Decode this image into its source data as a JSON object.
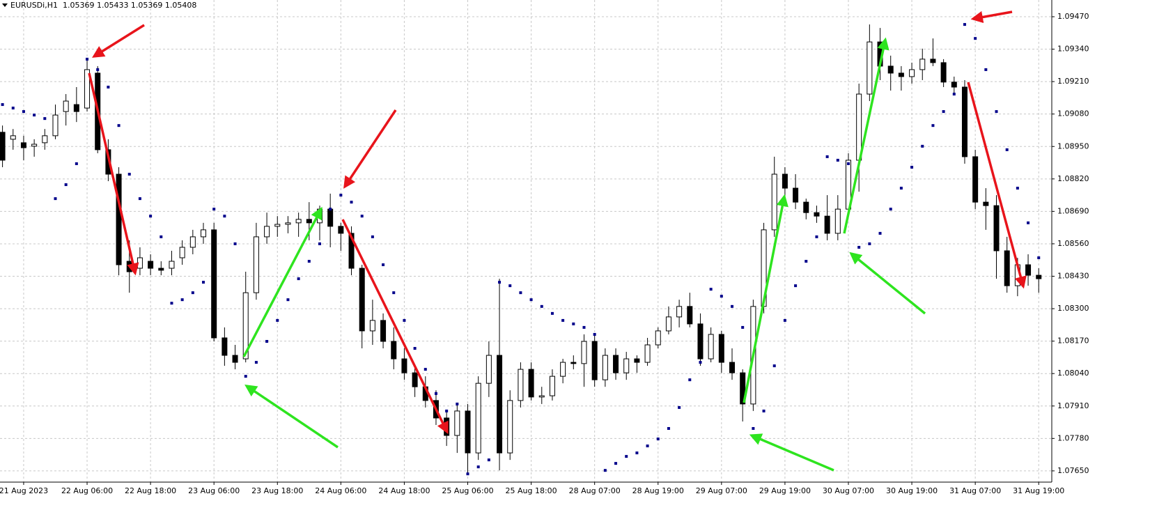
{
  "chart_data": {
    "type": "candlestick",
    "title": "EURUSDi,H1  1.05369 1.05433 1.05369 1.05408",
    "ylim": [
      1.07605,
      1.09537
    ],
    "yticks": [
      {
        "value": 1.0765,
        "label": "1.07650"
      },
      {
        "value": 1.0778,
        "label": "1.07780"
      },
      {
        "value": 1.0791,
        "label": "1.07910"
      },
      {
        "value": 1.0804,
        "label": "1.08040"
      },
      {
        "value": 1.0817,
        "label": "1.08170"
      },
      {
        "value": 1.083,
        "label": "1.08300"
      },
      {
        "value": 1.0843,
        "label": "1.08430"
      },
      {
        "value": 1.0856,
        "label": "1.08560"
      },
      {
        "value": 1.0869,
        "label": "1.08690"
      },
      {
        "value": 1.0882,
        "label": "1.08820"
      },
      {
        "value": 1.0895,
        "label": "1.08950"
      },
      {
        "value": 1.0908,
        "label": "1.09080"
      },
      {
        "value": 1.0921,
        "label": "1.09210"
      },
      {
        "value": 1.0934,
        "label": "1.09340"
      },
      {
        "value": 1.0947,
        "label": "1.09470"
      }
    ],
    "xticks": [
      {
        "value": 2,
        "label": "21 Aug 2023"
      },
      {
        "value": 8,
        "label": "22 Aug 06:00"
      },
      {
        "value": 14,
        "label": "22 Aug 18:00"
      },
      {
        "value": 20,
        "label": "23 Aug 06:00"
      },
      {
        "value": 26,
        "label": "23 Aug 18:00"
      },
      {
        "value": 32,
        "label": "24 Aug 06:00"
      },
      {
        "value": 38,
        "label": "24 Aug 18:00"
      },
      {
        "value": 44,
        "label": "25 Aug 06:00"
      },
      {
        "value": 50,
        "label": "25 Aug 18:00"
      },
      {
        "value": 56,
        "label": "28 Aug 07:00"
      },
      {
        "value": 62,
        "label": "28 Aug 19:00"
      },
      {
        "value": 68,
        "label": "29 Aug 07:00"
      },
      {
        "value": 74,
        "label": "29 Aug 19:00"
      },
      {
        "value": 80,
        "label": "30 Aug 07:00"
      },
      {
        "value": 86,
        "label": "30 Aug 19:00"
      },
      {
        "value": 92,
        "label": "31 Aug 07:00"
      },
      {
        "value": 98,
        "label": "31 Aug 19:00"
      }
    ],
    "grid": true,
    "bull_color": "#ffffff",
    "bear_color": "#000000",
    "open": [
      1.09007,
      1.08979,
      1.08965,
      1.08951,
      1.08965,
      1.08993,
      1.0909,
      1.09118,
      1.09104,
      1.09244,
      1.08937,
      1.08839,
      1.0849,
      1.08462,
      1.0849,
      1.08462,
      1.08462,
      1.08504,
      1.08546,
      1.08588,
      1.08616,
      1.08183,
      1.08113,
      1.08099,
      1.08364,
      1.08588,
      1.0863,
      1.08638,
      1.08644,
      1.08658,
      1.08644,
      1.08699,
      1.0863,
      1.08602,
      1.08462,
      1.08211,
      1.08253,
      1.08169,
      1.08099,
      1.08043,
      1.07987,
      1.07932,
      1.07862,
      1.07792,
      1.0789,
      1.07722,
      1.08001,
      1.08113,
      1.07722,
      1.07932,
      1.08057,
      1.07946,
      1.07951,
      1.08029,
      1.08085,
      1.0808,
      1.08169,
      1.08015,
      1.08113,
      1.08043,
      1.08099,
      1.08085,
      1.08155,
      1.08211,
      1.08267,
      1.08309,
      1.08239,
      1.08099,
      1.08197,
      1.08085,
      1.08043,
      1.07918,
      1.08309,
      1.08616,
      1.08839,
      1.08783,
      1.08727,
      1.08685,
      1.08671,
      1.08602,
      1.08699,
      1.08895,
      1.0916,
      1.09369,
      1.09272,
      1.09244,
      1.0923,
      1.09258,
      1.093,
      1.09286,
      1.09208,
      1.09188,
      1.08909,
      1.08727,
      1.08713,
      1.08532,
      1.08392,
      1.08476,
      1.08434
    ],
    "high": [
      1.09034,
      1.0902,
      1.08993,
      1.08979,
      1.0902,
      1.09118,
      1.0916,
      1.09188,
      1.093,
      1.09272,
      1.08979,
      1.08867,
      1.08574,
      1.08546,
      1.08518,
      1.0849,
      1.08532,
      1.08574,
      1.08616,
      1.08644,
      1.08644,
      1.08225,
      1.08155,
      1.08448,
      1.08644,
      1.08685,
      1.08671,
      1.08671,
      1.08685,
      1.08727,
      1.08713,
      1.08761,
      1.08644,
      1.0863,
      1.08476,
      1.08336,
      1.08281,
      1.08225,
      1.08141,
      1.08071,
      1.08029,
      1.07973,
      1.0789,
      1.07918,
      1.07918,
      1.08029,
      1.08169,
      1.0842,
      1.07973,
      1.08085,
      1.08085,
      1.07987,
      1.08057,
      1.08099,
      1.08113,
      1.08197,
      1.08197,
      1.08141,
      1.08141,
      1.08127,
      1.08113,
      1.08183,
      1.08225,
      1.08309,
      1.08336,
      1.08364,
      1.08281,
      1.08225,
      1.08211,
      1.08141,
      1.08057,
      1.08336,
      1.08644,
      1.08909,
      1.08867,
      1.08839,
      1.08741,
      1.08713,
      1.08755,
      1.08755,
      1.08923,
      1.09202,
      1.09439,
      1.09425,
      1.09314,
      1.09272,
      1.09286,
      1.09342,
      1.09383,
      1.093,
      1.0923,
      1.09216,
      1.08937,
      1.08783,
      1.08755,
      1.08588,
      1.08504,
      1.08518,
      1.08462
    ],
    "low": [
      1.08867,
      1.08937,
      1.08895,
      1.08909,
      1.08937,
      1.08979,
      1.09034,
      1.09048,
      1.0909,
      1.08923,
      1.08811,
      1.08434,
      1.08364,
      1.08434,
      1.08434,
      1.08434,
      1.08434,
      1.08476,
      1.08518,
      1.0856,
      1.08169,
      1.08071,
      1.08057,
      1.08085,
      1.08336,
      1.0856,
      1.08588,
      1.08602,
      1.08588,
      1.08574,
      1.08574,
      1.08546,
      1.08532,
      1.08434,
      1.08141,
      1.08155,
      1.08141,
      1.08057,
      1.08015,
      1.07946,
      1.07904,
      1.07834,
      1.0775,
      1.07722,
      1.07638,
      1.07694,
      1.07946,
      1.07652,
      1.07694,
      1.07904,
      1.07932,
      1.07918,
      1.07932,
      1.08001,
      1.08057,
      1.07987,
      1.07987,
      1.07987,
      1.08015,
      1.08015,
      1.08043,
      1.08071,
      1.08141,
      1.08197,
      1.08225,
      1.08225,
      1.08071,
      1.08085,
      1.08043,
      1.08015,
      1.07848,
      1.0789,
      1.08281,
      1.08588,
      1.08727,
      1.08699,
      1.08658,
      1.08644,
      1.08574,
      1.08574,
      1.08671,
      1.08769,
      1.09132,
      1.09216,
      1.09174,
      1.09174,
      1.09202,
      1.09216,
      1.09272,
      1.09188,
      1.0916,
      1.08881,
      1.08699,
      1.08616,
      1.0842,
      1.08364,
      1.0835,
      1.08392,
      1.08364
    ],
    "close": [
      1.08895,
      1.08993,
      1.08945,
      1.08959,
      1.08993,
      1.09076,
      1.09132,
      1.0909,
      1.09258,
      1.08937,
      1.08839,
      1.08476,
      1.08448,
      1.08504,
      1.08462,
      1.08454,
      1.0849,
      1.08546,
      1.08588,
      1.08616,
      1.08183,
      1.08113,
      1.08085,
      1.08364,
      1.08588,
      1.0863,
      1.08638,
      1.08644,
      1.08658,
      1.08644,
      1.08699,
      1.0863,
      1.08602,
      1.08462,
      1.08211,
      1.08253,
      1.08169,
      1.08099,
      1.08043,
      1.07987,
      1.07932,
      1.07862,
      1.07792,
      1.0789,
      1.07722,
      1.08001,
      1.08113,
      1.07722,
      1.07932,
      1.08057,
      1.07946,
      1.07951,
      1.08029,
      1.08085,
      1.0808,
      1.08169,
      1.08015,
      1.08113,
      1.08043,
      1.08099,
      1.08085,
      1.08155,
      1.08211,
      1.08267,
      1.08309,
      1.08239,
      1.08099,
      1.08197,
      1.08085,
      1.08043,
      1.07918,
      1.08309,
      1.08616,
      1.08839,
      1.08783,
      1.08727,
      1.08685,
      1.08671,
      1.08602,
      1.08699,
      1.08895,
      1.0916,
      1.09369,
      1.09272,
      1.09244,
      1.0923,
      1.09258,
      1.093,
      1.09286,
      1.09208,
      1.09188,
      1.08909,
      1.08727,
      1.08713,
      1.08532,
      1.08392,
      1.08476,
      1.08434,
      1.0842
    ],
    "sar": {
      "color": "#00008b",
      "values": [
        1.09118,
        1.09104,
        1.0909,
        1.09076,
        1.09062,
        1.08741,
        1.08797,
        1.08881,
        1.093,
        1.09258,
        1.09188,
        1.09034,
        1.08839,
        1.08741,
        1.08671,
        1.08588,
        1.08322,
        1.08336,
        1.08364,
        1.08406,
        1.08699,
        1.08671,
        1.0856,
        1.08029,
        1.08085,
        1.08169,
        1.08253,
        1.08336,
        1.0842,
        1.0849,
        1.0856,
        1.08699,
        1.08755,
        1.08727,
        1.08671,
        1.08588,
        1.08476,
        1.08364,
        1.08253,
        1.08141,
        1.08057,
        1.0796,
        1.0789,
        1.07918,
        1.07638,
        1.07666,
        1.07694,
        1.08406,
        1.08392,
        1.08364,
        1.08336,
        1.08309,
        1.08281,
        1.08253,
        1.08239,
        1.08225,
        1.08197,
        1.07652,
        1.0768,
        1.07708,
        1.07722,
        1.0775,
        1.07778,
        1.0782,
        1.07904,
        1.08015,
        1.08085,
        1.08378,
        1.0835,
        1.08309,
        1.08225,
        1.0782,
        1.0789,
        1.08071,
        1.08253,
        1.08392,
        1.0849,
        1.08588,
        1.08909,
        1.08895,
        1.08881,
        1.08546,
        1.0856,
        1.08602,
        1.08699,
        1.08783,
        1.08867,
        1.08951,
        1.09034,
        1.0909,
        1.0916,
        1.09439,
        1.09383,
        1.09258,
        1.0909,
        1.08937,
        1.08783,
        1.08644,
        1.08504
      ]
    }
  }
}
